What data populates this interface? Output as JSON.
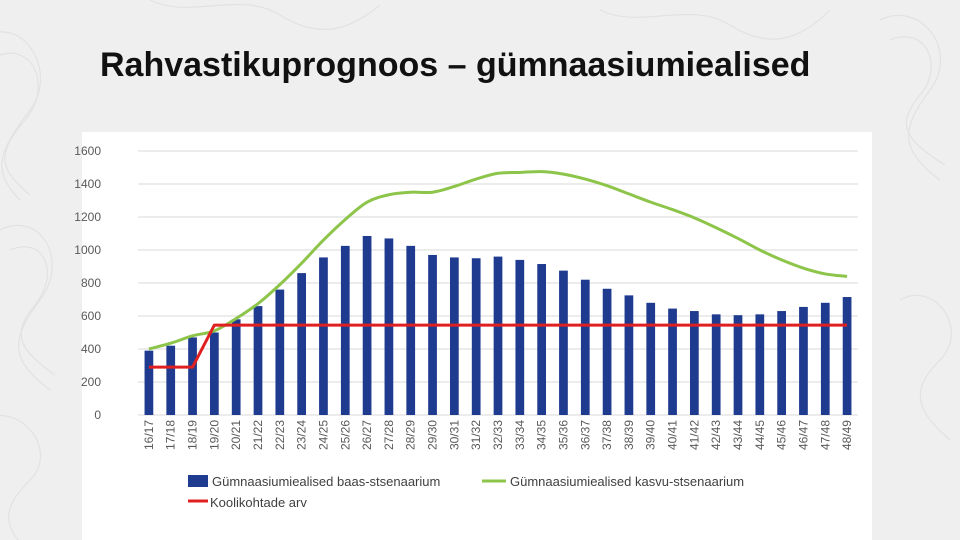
{
  "title": "Rahvastikuprognoos – gümnaasiumiealised",
  "chart_data": {
    "type": "bar",
    "categories": [
      "16/17",
      "17/18",
      "18/19",
      "19/20",
      "20/21",
      "21/22",
      "22/23",
      "23/24",
      "24/25",
      "25/26",
      "26/27",
      "27/28",
      "28/29",
      "29/30",
      "30/31",
      "31/32",
      "32/33",
      "33/34",
      "34/35",
      "35/36",
      "36/37",
      "37/38",
      "38/39",
      "39/40",
      "40/41",
      "41/42",
      "42/43",
      "43/44",
      "44/45",
      "45/46",
      "46/47",
      "47/48",
      "48/49"
    ],
    "ylim": [
      0,
      1600
    ],
    "yticks": [
      0,
      200,
      400,
      600,
      800,
      1000,
      1200,
      1400,
      1600
    ],
    "grid": true,
    "legend_position": "bottom",
    "series": [
      {
        "name": "Gümnaasiumiealised baas-stsenaarium",
        "type": "bar",
        "color": "#1f3b8f",
        "values": [
          390,
          420,
          470,
          500,
          580,
          660,
          760,
          860,
          955,
          1025,
          1085,
          1070,
          1025,
          970,
          955,
          950,
          960,
          940,
          915,
          875,
          820,
          765,
          725,
          680,
          645,
          630,
          610,
          605,
          610,
          630,
          655,
          680,
          715
        ]
      },
      {
        "name": "Gümnaasiumiealised kasvu-stsenaarium",
        "type": "line",
        "color": "#8dc44a",
        "values": [
          400,
          435,
          480,
          510,
          585,
          675,
          790,
          920,
          1060,
          1185,
          1290,
          1335,
          1350,
          1350,
          1385,
          1430,
          1465,
          1470,
          1475,
          1460,
          1430,
          1390,
          1340,
          1290,
          1245,
          1195,
          1135,
          1070,
          1000,
          940,
          890,
          855,
          840
        ]
      },
      {
        "name": "Koolikohtade arv",
        "type": "line",
        "color": "#e02020",
        "values": [
          290,
          290,
          290,
          545,
          545,
          545,
          545,
          545,
          545,
          545,
          545,
          545,
          545,
          545,
          545,
          545,
          545,
          545,
          545,
          545,
          545,
          545,
          545,
          545,
          545,
          545,
          545,
          545,
          545,
          545,
          545,
          545,
          545
        ]
      }
    ]
  }
}
